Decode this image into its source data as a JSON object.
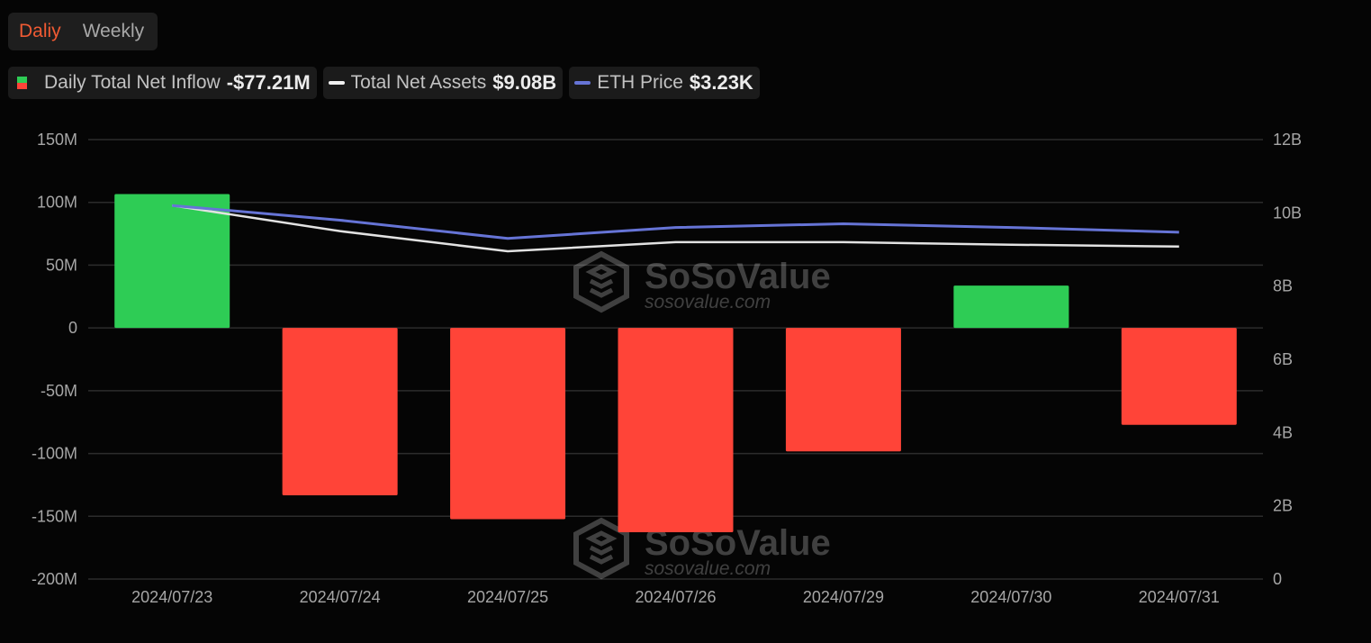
{
  "tabs": [
    {
      "label": "Daliy",
      "active": true
    },
    {
      "label": "Weekly",
      "active": false
    }
  ],
  "legend": {
    "net_inflow": {
      "label": "Daily Total Net Inflow",
      "value": "-$77.21M"
    },
    "net_assets": {
      "label": "Total Net Assets",
      "value": "$9.08B"
    },
    "eth_price": {
      "label": "ETH Price",
      "value": "$3.23K"
    }
  },
  "watermark": {
    "brand": "SoSoValue",
    "url": "sosovalue.com"
  },
  "colors": {
    "positive": "#2ecc55",
    "negative": "#ff4438",
    "net_assets_line": "#e2e2e2",
    "eth_price_line": "#6674d6",
    "tab_active": "#ef5a33",
    "grid": "#2c2c2c"
  },
  "chart_data": {
    "type": "bar",
    "categories": [
      "2024/07/23",
      "2024/07/24",
      "2024/07/25",
      "2024/07/26",
      "2024/07/29",
      "2024/07/30",
      "2024/07/31"
    ],
    "left_axis": {
      "ticks": [
        "150M",
        "100M",
        "50M",
        "0",
        "-50M",
        "-100M",
        "-150M",
        "-200M"
      ],
      "range": [
        -200,
        150
      ],
      "unit": "M"
    },
    "right_axis": {
      "ticks": [
        "12B",
        "10B",
        "8B",
        "6B",
        "4B",
        "2B",
        "0"
      ],
      "range": [
        0,
        12
      ],
      "unit": "B"
    },
    "series": [
      {
        "name": "Daily Total Net Inflow",
        "type": "bar",
        "axis": "left",
        "values": [
          106.6,
          -133.3,
          -152.3,
          -162.7,
          -98.3,
          33.7,
          -77.2
        ]
      },
      {
        "name": "Total Net Assets",
        "type": "line",
        "axis": "right",
        "values": [
          10.2,
          9.5,
          8.95,
          9.2,
          9.2,
          9.13,
          9.08
        ]
      },
      {
        "name": "ETH Price",
        "type": "line",
        "axis": "right",
        "values": [
          10.2,
          9.8,
          9.3,
          9.6,
          9.7,
          9.6,
          9.47
        ]
      }
    ],
    "grid": true
  }
}
